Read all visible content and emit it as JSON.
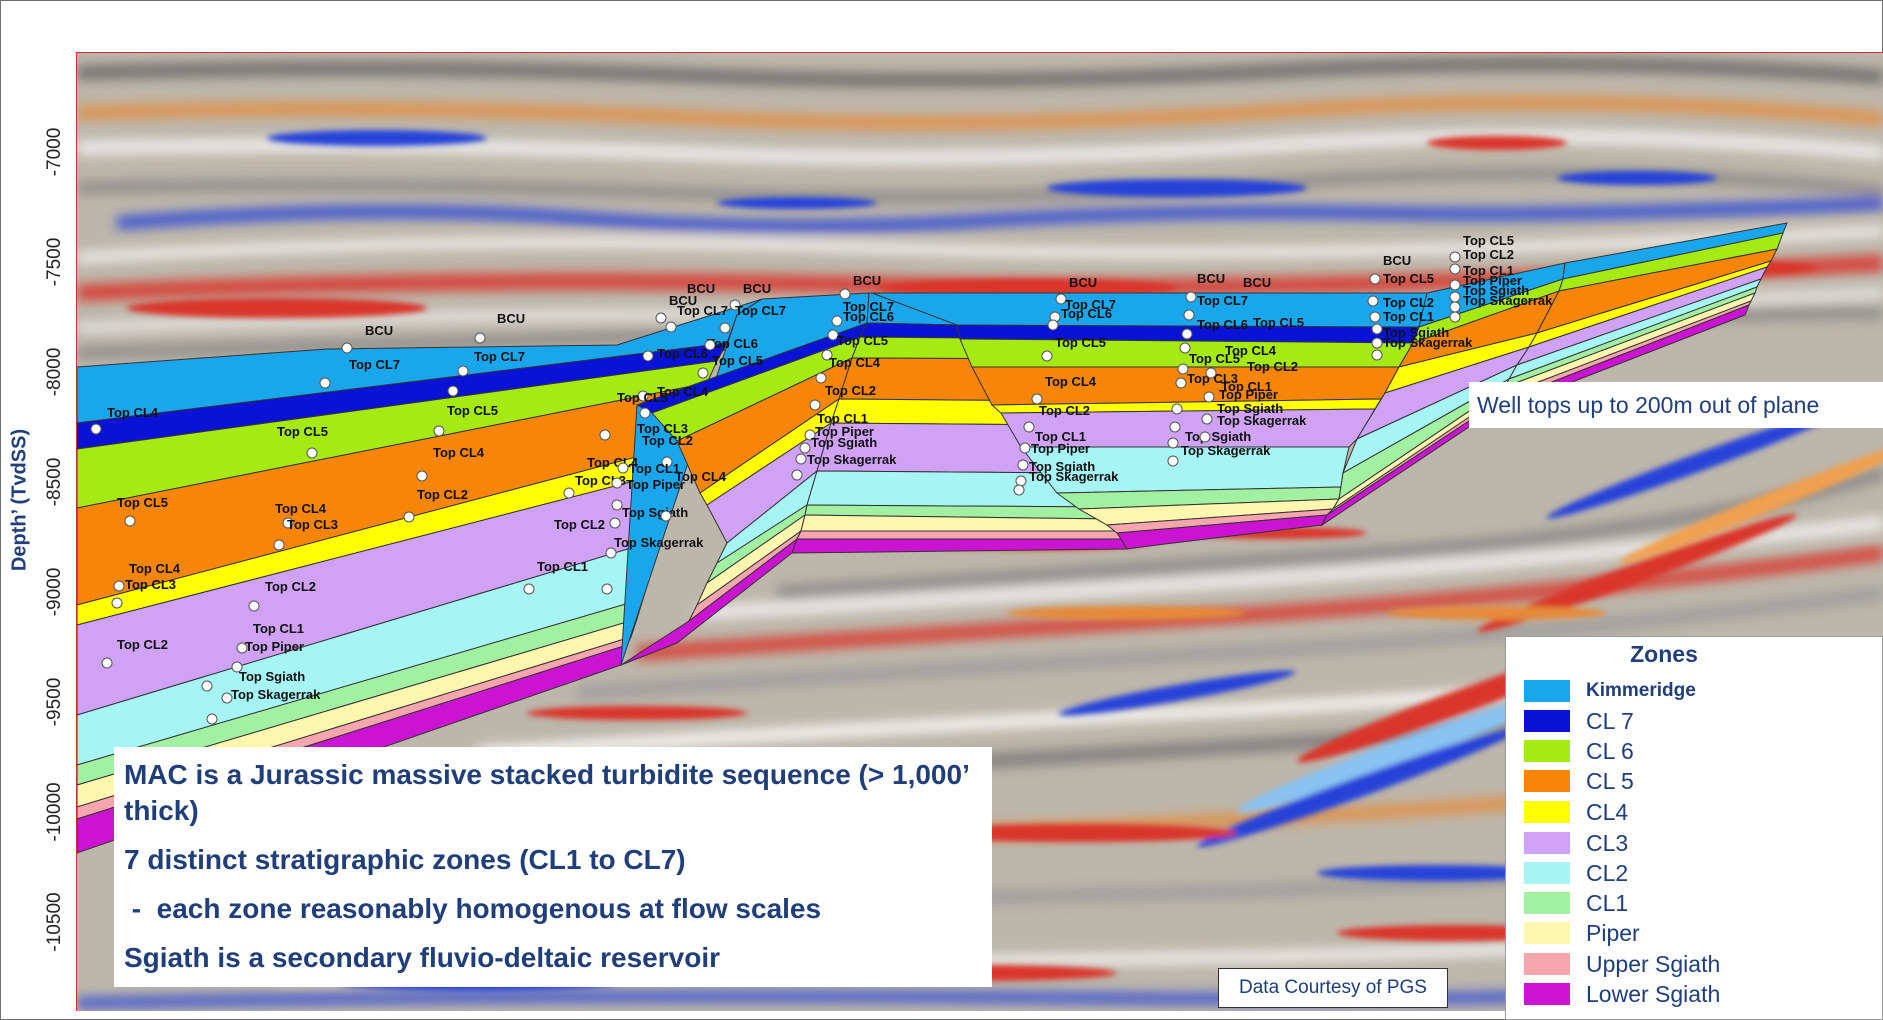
{
  "axis": {
    "y_label": "Depth’ (TvdSS)",
    "y_ticks": [
      "-7000",
      "-7500",
      "-8000",
      "-8500",
      "-9000",
      "-9500",
      "-10000",
      "-10500"
    ]
  },
  "callout": "Well tops up to 200m out of plane",
  "description": {
    "line1": "MAC is a Jurassic massive stacked turbidite sequence (> 1,000’ thick)",
    "line2": "7 distinct stratigraphic zones (CL1 to CL7)",
    "line3": " -  each zone reasonably homogenous at flow scales",
    "line4": "Sgiath is a secondary fluvio-deltaic reservoir"
  },
  "courtesy": "Data Courtesy of PGS",
  "legend": {
    "title": "Zones",
    "items": [
      {
        "label": "Kimmeridge",
        "color": "#1aa6ec",
        "bold": true
      },
      {
        "label": "CL 7",
        "color": "#0a12d6"
      },
      {
        "label": "CL 6",
        "color": "#a6ea14"
      },
      {
        "label": "CL 5",
        "color": "#f78508"
      },
      {
        "label": "CL4",
        "color": "#ffff00"
      },
      {
        "label": "CL3",
        "color": "#cfa2f5"
      },
      {
        "label": "CL2",
        "color": "#a6f4f4"
      },
      {
        "label": "CL1",
        "color": "#a2f0a2"
      },
      {
        "label": "Piper",
        "color": "#fdf6ae"
      },
      {
        "label": "Upper Sgiath",
        "color": "#f7a6ae"
      },
      {
        "label": "Lower Sgiath",
        "color": "#ca14d2"
      }
    ]
  },
  "well_tops": {
    "b1": [
      "BCU",
      "Top CL7",
      "Top CL6",
      "Top CL5",
      "Top CL4",
      "Top CL3",
      "Top CL2",
      "Top CL1",
      "Top Piper",
      "Top Sgiath",
      "Top Skagerrak"
    ],
    "b2": [
      "BCU",
      "Top CL7",
      "Top CL6",
      "Top CL5",
      "Top CL4",
      "Top CL3",
      "Top CL2",
      "Top CL1",
      "Top Piper",
      "Top Sgiath",
      "Top Skagerrak"
    ],
    "b3": [
      "BCU",
      "Top CL7",
      "Top CL6",
      "Top CL5",
      "Top CL4",
      "Top CL3",
      "Top CL2",
      "Top CL1",
      "Top Piper",
      "Top Sgiath",
      "Top Skagerrak"
    ],
    "b4": [
      "BCU",
      "Top CL7",
      "Top CL6",
      "Top CL5",
      "Top CL4",
      "Top CL3",
      "Top CL2",
      "Top CL1",
      "Top Piper",
      "Top Sgiath",
      "Top Skagerrak"
    ],
    "b5": [
      "BCU",
      "Top CL7",
      "Top CL6",
      "Top CL5",
      "Top CL4",
      "Top CL3",
      "Top CL2",
      "Top CL1",
      "Top Piper",
      "Top Sgiath",
      "Top Skagerrak"
    ],
    "b6": [
      "BCU",
      "Top CL7",
      "Top CL6",
      "Top CL5",
      "Top CL4",
      "Top CL3",
      "Top CL2",
      "Top CL1",
      "Top Piper",
      "Top Sgiath",
      "Top Skagerrak"
    ]
  }
}
